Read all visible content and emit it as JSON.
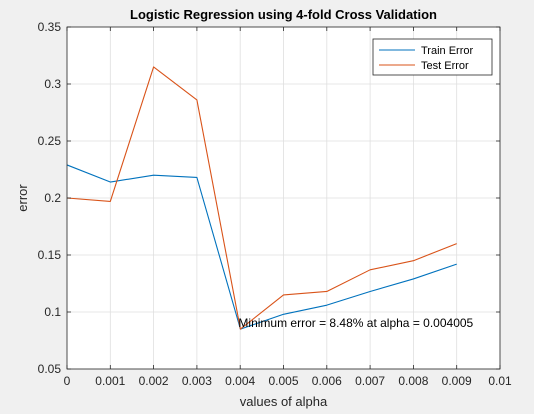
{
  "chart_data": {
    "type": "line",
    "title": "Logistic Regression using 4-fold Cross Validation",
    "xlabel": "values of alpha",
    "ylabel": "error",
    "xlim": [
      0,
      0.01
    ],
    "ylim": [
      0.05,
      0.35
    ],
    "x_ticks": [
      0,
      0.001,
      0.002,
      0.003,
      0.004,
      0.005,
      0.006,
      0.007,
      0.008,
      0.009,
      0.01
    ],
    "x_tick_labels": [
      "0",
      "0.001",
      "0.002",
      "0.003",
      "0.004",
      "0.005",
      "0.006",
      "0.007",
      "0.008",
      "0.009",
      "0.01"
    ],
    "y_ticks": [
      0.05,
      0.1,
      0.15,
      0.2,
      0.25,
      0.3,
      0.35
    ],
    "y_tick_labels": [
      "0.05",
      "0.1",
      "0.15",
      "0.2",
      "0.25",
      "0.3",
      "0.35"
    ],
    "grid": true,
    "legend_position": "top-right",
    "x": [
      0,
      0.001,
      0.002,
      0.003,
      0.004005,
      0.005,
      0.006,
      0.007,
      0.008,
      0.009
    ],
    "series": [
      {
        "name": "Train Error",
        "color": "#0072bd",
        "values": [
          0.229,
          0.214,
          0.22,
          0.218,
          0.085,
          0.098,
          0.106,
          0.118,
          0.129,
          0.142
        ]
      },
      {
        "name": "Test Error",
        "color": "#d95319",
        "values": [
          0.2,
          0.197,
          0.315,
          0.286,
          0.085,
          0.115,
          0.118,
          0.137,
          0.145,
          0.16
        ]
      }
    ],
    "annotation": {
      "text": "Minimum error = 8.48% at alpha = 0.004005",
      "x": 0.004005,
      "y": 0.085
    }
  }
}
